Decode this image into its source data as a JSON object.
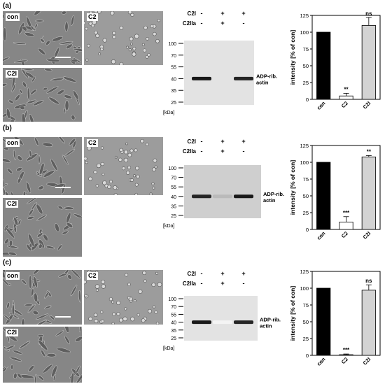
{
  "panels": [
    {
      "letter": "(a)",
      "images": [
        "con",
        "C2",
        "C2I"
      ],
      "blot": {
        "header_rows": [
          {
            "label": "C2I",
            "signs": [
              "-",
              "+",
              "+"
            ]
          },
          {
            "label": "C2IIa",
            "signs": [
              "-",
              "+",
              "-"
            ]
          }
        ],
        "markers": [
          "100",
          "70",
          "55",
          "40",
          "35",
          "25"
        ],
        "unit": "[kDa]",
        "band_label": [
          "ADP-rib.",
          "actin"
        ],
        "band_intensity": [
          1.0,
          0.0,
          0.95
        ]
      }
    },
    {
      "letter": "(b)",
      "images": [
        "con",
        "C2",
        "C2I"
      ],
      "blot": {
        "header_rows": [
          {
            "label": "C2I",
            "signs": [
              "-",
              "+",
              "+"
            ]
          },
          {
            "label": "C2IIa",
            "signs": [
              "-",
              "+",
              "-"
            ]
          }
        ],
        "markers": [
          "100",
          "70",
          "55",
          "40",
          "35",
          "25"
        ],
        "unit": "[kDa]",
        "band_label": [
          "ADP-rib.",
          "actin"
        ],
        "band_intensity": [
          0.95,
          0.3,
          1.0
        ]
      }
    },
    {
      "letter": "(c)",
      "images": [
        "con",
        "C2",
        "C2I"
      ],
      "blot": {
        "header_rows": [
          {
            "label": "C2I",
            "signs": [
              "-",
              "+",
              "+"
            ]
          },
          {
            "label": "C2IIa",
            "signs": [
              "-",
              "+",
              "-"
            ]
          }
        ],
        "markers": [
          "100",
          "70",
          "55",
          "40",
          "35",
          "25"
        ],
        "unit": "[kDa]",
        "band_label": [
          "ADP-rib.",
          "actin"
        ],
        "band_intensity": [
          1.0,
          0.05,
          0.95
        ]
      }
    }
  ],
  "chart_data": [
    {
      "type": "bar",
      "categories": [
        "con",
        "C2",
        "C2I"
      ],
      "values": [
        100,
        5,
        110
      ],
      "errors": [
        0,
        4,
        12
      ],
      "significance": [
        "",
        "**",
        "ns"
      ],
      "colors": [
        "#000000",
        "#ffffff",
        "#d3d3d3"
      ],
      "ylabel": "intensity [% of con]",
      "yticks": [
        0,
        25,
        50,
        75,
        100,
        125
      ],
      "ylim": [
        0,
        125
      ]
    },
    {
      "type": "bar",
      "categories": [
        "con",
        "C2",
        "C2I"
      ],
      "values": [
        100,
        11,
        108
      ],
      "errors": [
        0,
        8,
        2
      ],
      "significance": [
        "",
        "***",
        "**"
      ],
      "colors": [
        "#000000",
        "#ffffff",
        "#d3d3d3"
      ],
      "ylabel": "intensity [% of con]",
      "yticks": [
        0,
        25,
        50,
        75,
        100,
        125
      ],
      "ylim": [
        0,
        125
      ]
    },
    {
      "type": "bar",
      "categories": [
        "con",
        "C2",
        "C2I"
      ],
      "values": [
        100,
        1,
        97
      ],
      "errors": [
        0,
        1,
        8
      ],
      "significance": [
        "",
        "***",
        "ns"
      ],
      "colors": [
        "#000000",
        "#ffffff",
        "#d3d3d3"
      ],
      "ylabel": "intensity [% of con]",
      "yticks": [
        0,
        25,
        50,
        75,
        100,
        125
      ],
      "ylim": [
        0,
        125
      ]
    }
  ]
}
